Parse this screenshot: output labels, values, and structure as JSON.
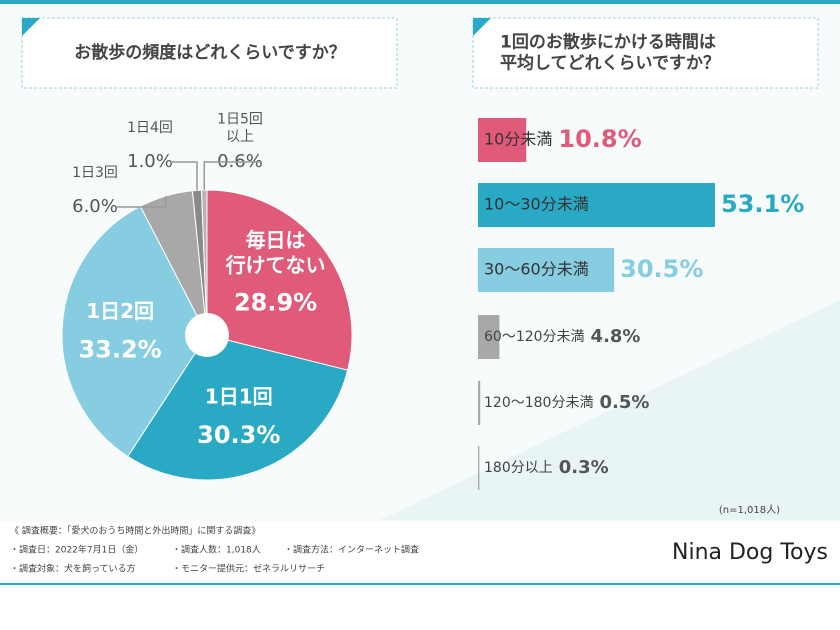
{
  "chart_data": [
    {
      "type": "pie",
      "title": "お散歩の頻度はどれくらいですか？",
      "categories": [
        "毎日は\n行けてない",
        "1日1回",
        "1日2回",
        "1日3回",
        "1日4回",
        "1日5回\n以上"
      ],
      "values": [
        28.9,
        30.3,
        33.2,
        6.0,
        1.0,
        0.6
      ],
      "value_labels": [
        "28.9%",
        "30.3%",
        "33.2%",
        "6.0%",
        "1.0%",
        "0.6%"
      ],
      "colors": [
        "#e05a7a",
        "#29a9c4",
        "#86cde2",
        "#a8a8a8",
        "#8a8a8a",
        "#b5b5b5"
      ]
    },
    {
      "type": "bar",
      "title": "1回のお散歩にかける時間は\n平均してどれくらいですか？",
      "categories": [
        "10分未満",
        "10〜30分未満",
        "30〜60分未満",
        "60〜120分未満",
        "120〜180分未満",
        "180分以上"
      ],
      "values": [
        10.8,
        53.1,
        30.5,
        4.8,
        0.5,
        0.3
      ],
      "value_labels": [
        "10.8%",
        "53.1%",
        "30.5%",
        "4.8%",
        "0.5%",
        "0.3%"
      ],
      "colors": [
        "#e05a7a",
        "#29a9c4",
        "#86cde2",
        "#a8a8a8",
        "#a8a8a8",
        "#a8a8a8"
      ],
      "note": "(n=1,018人)"
    }
  ],
  "footer": [
    "《 調査概要：「愛犬のおうち時間と外出時間」に関する調査》",
    "・調査日：2022年7月1日（金）",
    "・調査人数：1,018人",
    "・調査方法：インターネット調査",
    "・調査対象：犬を飼っている方",
    "・モニター提供元：ゼネラルリサーチ"
  ],
  "brand": "Nina Dog Toys"
}
